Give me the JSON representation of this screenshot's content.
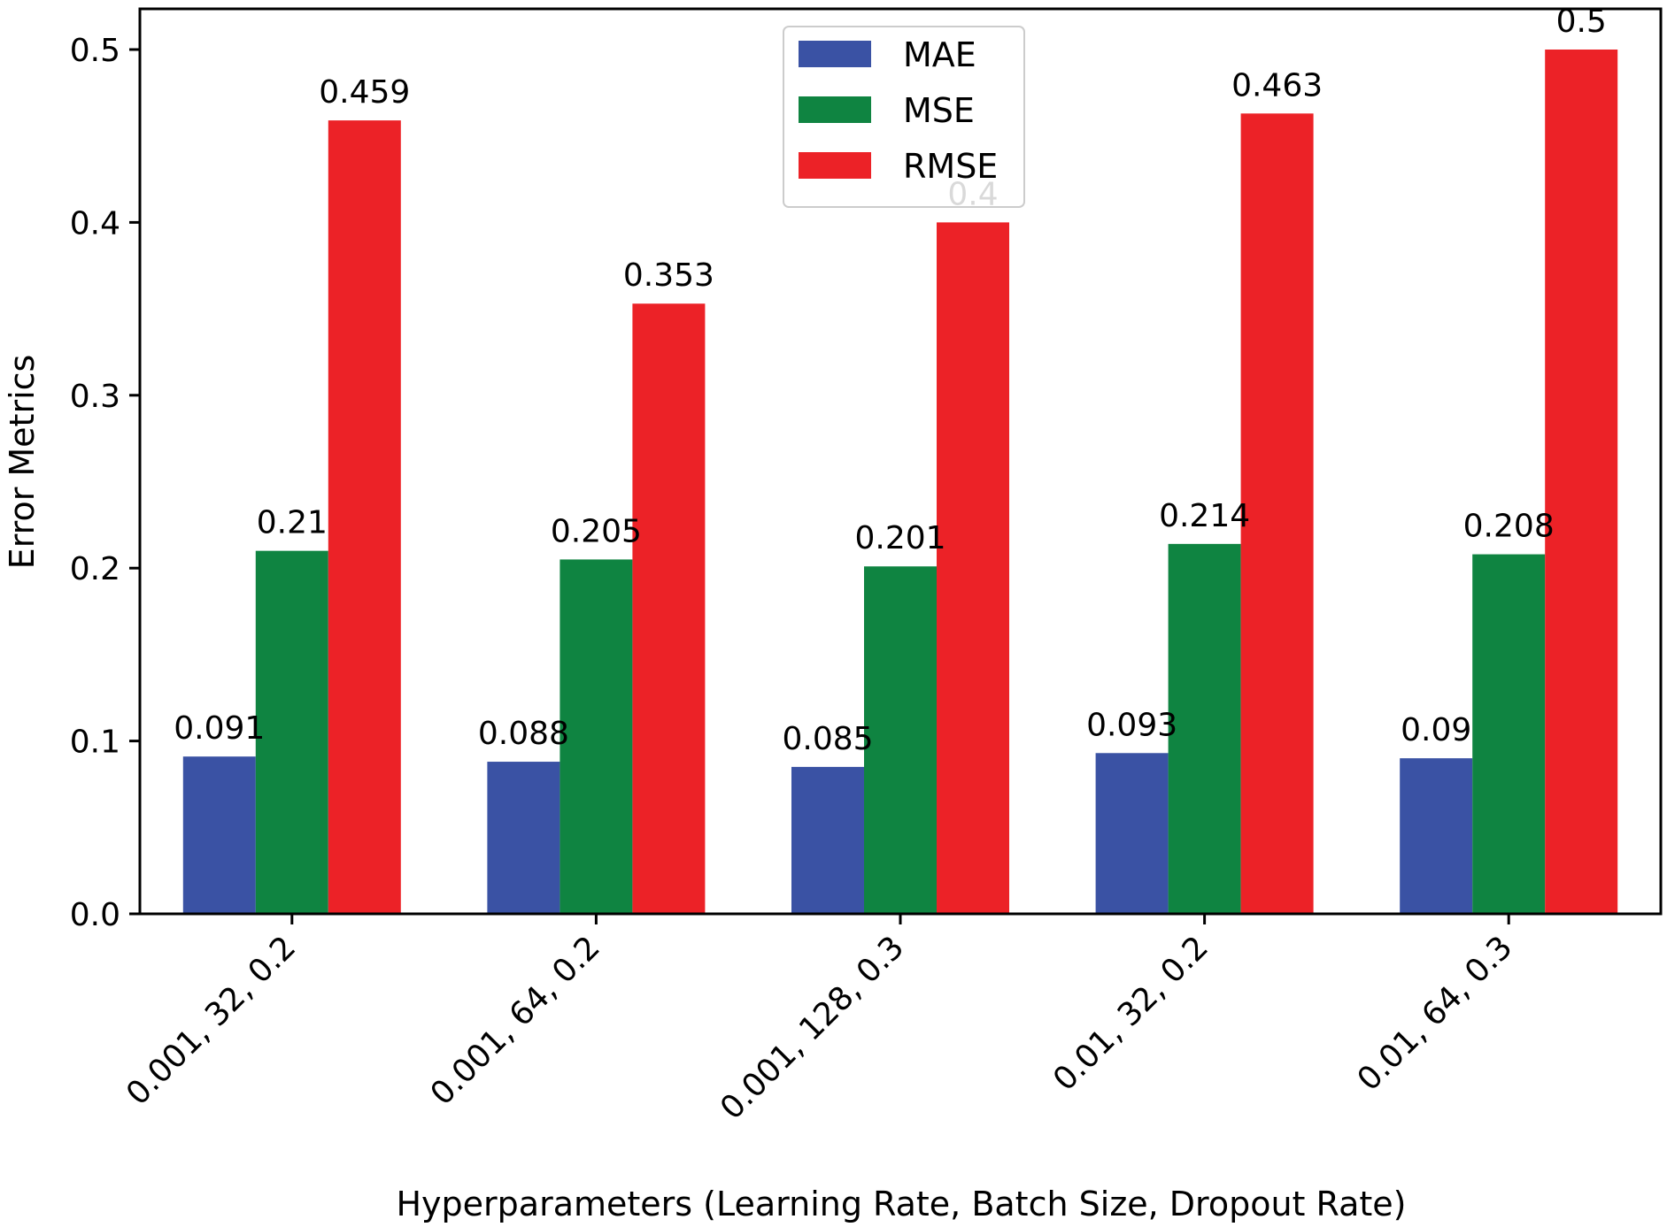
{
  "chart_data": {
    "type": "bar",
    "title": "",
    "xlabel": "Hyperparameters (Learning Rate, Batch Size, Dropout Rate)",
    "ylabel": "Error Metrics",
    "ylim": [
      0,
      0.5
    ],
    "yticks": [
      "0.0",
      "0.1",
      "0.2",
      "0.3",
      "0.4",
      "0.5"
    ],
    "grid": false,
    "legend_position": "top-center",
    "categories": [
      "0.001, 32, 0.2",
      "0.001, 64, 0.2",
      "0.001, 128, 0.3",
      "0.01, 32, 0.2",
      "0.01, 64, 0.3"
    ],
    "series": [
      {
        "name": "MAE",
        "color": "#3a52a4",
        "values": [
          0.091,
          0.088,
          0.085,
          0.093,
          0.09
        ],
        "labels": [
          "0.091",
          "0.088",
          "0.085",
          "0.093",
          "0.09"
        ]
      },
      {
        "name": "MSE",
        "color": "#0f8441",
        "values": [
          0.21,
          0.205,
          0.201,
          0.214,
          0.208
        ],
        "labels": [
          "0.21",
          "0.205",
          "0.201",
          "0.214",
          "0.208"
        ]
      },
      {
        "name": "RMSE",
        "color": "#ec2227",
        "values": [
          0.459,
          0.353,
          0.4,
          0.463,
          0.5
        ],
        "labels": [
          "0.459",
          "0.353",
          "0.4",
          "0.463",
          "0.5"
        ]
      }
    ]
  }
}
